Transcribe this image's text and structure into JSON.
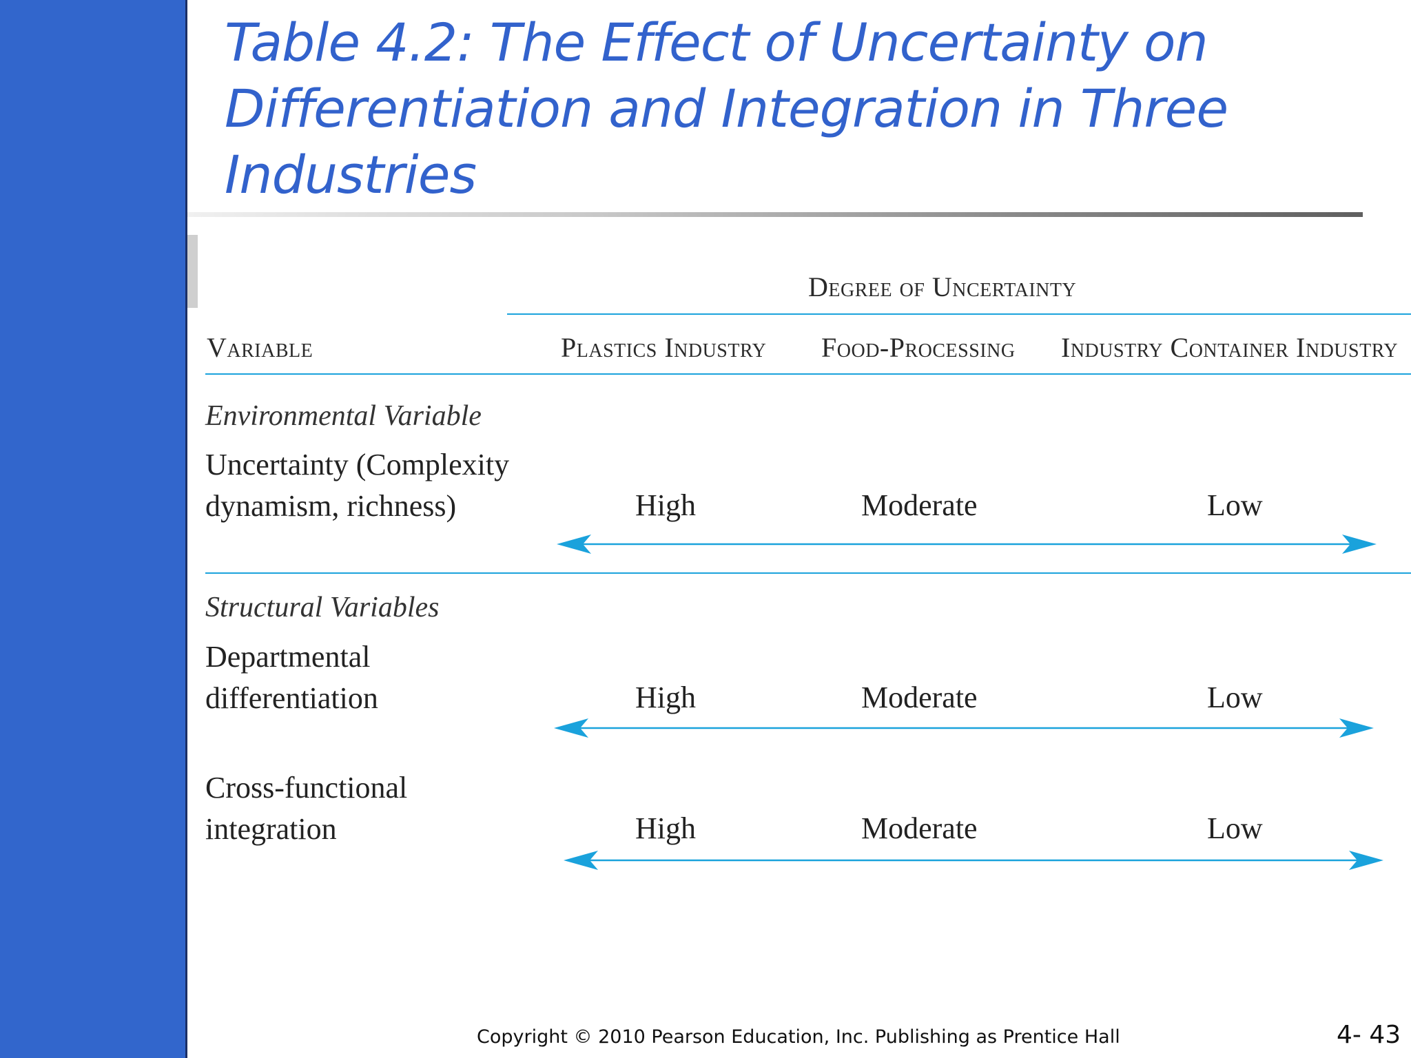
{
  "slide": {
    "title": "Table 4.2: The Effect of Uncertainty on Differentiation and Integration in Three Industries",
    "copyright": "Copyright © 2010 Pearson Education, Inc. Publishing as Prentice Hall",
    "page_number": "4- 43"
  },
  "table": {
    "group_header": "Degree of Uncertainty",
    "columns": {
      "variable": "Variable",
      "plastics": "Plastics Industry",
      "food": "Food-Processing",
      "container": "Industry Container Industry"
    },
    "environmental": {
      "section": "Environmental Variable",
      "rows": [
        {
          "name_line1": "Uncertainty (Complexity",
          "name_line2": "dynamism, richness)",
          "high": "High",
          "moderate": "Moderate",
          "low": "Low"
        }
      ]
    },
    "structural": {
      "section": "Structural Variables",
      "rows": [
        {
          "name_line1": "Departmental",
          "name_line2": "differentiation",
          "high": "High",
          "moderate": "Moderate",
          "low": "Low"
        },
        {
          "name_line1": "Cross-functional",
          "name_line2": "integration",
          "high": "High",
          "moderate": "Moderate",
          "low": "Low"
        }
      ]
    }
  },
  "colors": {
    "sidebar": "#3266cc",
    "title": "#3262cc",
    "accent_rule": "#1aa2dc"
  }
}
